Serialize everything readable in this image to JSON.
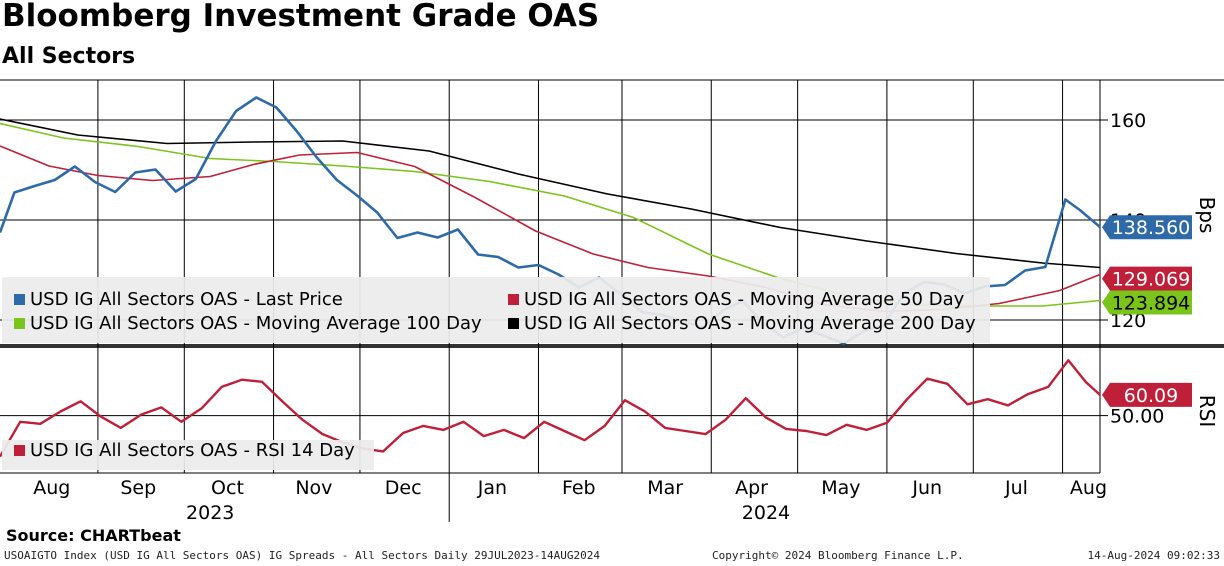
{
  "header": {
    "title": "Bloomberg Investment Grade OAS",
    "subtitle": "All Sectors"
  },
  "footer": {
    "source": "Source:  CHARTbeat",
    "description": "USOAIGTO Index (USD IG All Sectors OAS) IG Spreads - All Sectors  Daily 29JUL2023-14AUG2024",
    "copyright": "Copyright© 2024 Bloomberg Finance L.P.",
    "timestamp": "14-Aug-2024 09:02:33"
  },
  "colors": {
    "last_price": "#2e6aa8",
    "ma50": "#c01f3a",
    "ma100": "#7ac41c",
    "ma200": "#000000",
    "rsi": "#c01f3a",
    "gridline": "#000000",
    "legend_bg": "#ececec"
  },
  "chart_data": [
    {
      "type": "line",
      "title": "Bloomberg Investment Grade OAS",
      "subtitle": "All Sectors",
      "ylabel": "Bps",
      "y_ticks": [
        120,
        140,
        160
      ],
      "y_tick_labels": [
        "120",
        "140",
        "160"
      ],
      "ylim": [
        116,
        168
      ],
      "x_range": [
        "2023-07-29",
        "2024-08-14"
      ],
      "x_month_labels": [
        "Aug",
        "Sep",
        "Oct",
        "Nov",
        "Dec",
        "Jan",
        "Feb",
        "Mar",
        "Apr",
        "May",
        "Jun",
        "Jul",
        "Aug"
      ],
      "x_year_labels": [
        "2023",
        "2024"
      ],
      "grid": true,
      "legend_position": "bottom-left",
      "series": [
        {
          "name": "USD IG All Sectors OAS - Last Price",
          "color_key": "last_price",
          "last_value": "138.560",
          "points": [
            [
              "2023-07-29",
              137.5
            ],
            [
              "2023-08-03",
              145.5
            ],
            [
              "2023-08-10",
              146.8
            ],
            [
              "2023-08-17",
              148.0
            ],
            [
              "2023-08-24",
              150.7
            ],
            [
              "2023-08-31",
              147.6
            ],
            [
              "2023-09-07",
              145.6
            ],
            [
              "2023-09-14",
              149.5
            ],
            [
              "2023-09-21",
              150.1
            ],
            [
              "2023-09-28",
              145.7
            ],
            [
              "2023-10-05",
              148.2
            ],
            [
              "2023-10-12",
              155.8
            ],
            [
              "2023-10-19",
              161.8
            ],
            [
              "2023-10-26",
              164.5
            ],
            [
              "2023-11-02",
              162.5
            ],
            [
              "2023-11-09",
              157.8
            ],
            [
              "2023-11-16",
              152.5
            ],
            [
              "2023-11-23",
              148.0
            ],
            [
              "2023-11-30",
              144.9
            ],
            [
              "2023-12-07",
              141.5
            ],
            [
              "2023-12-14",
              136.4
            ],
            [
              "2023-12-21",
              137.5
            ],
            [
              "2023-12-28",
              136.5
            ],
            [
              "2024-01-04",
              138.1
            ],
            [
              "2024-01-11",
              133.1
            ],
            [
              "2024-01-18",
              132.6
            ],
            [
              "2024-01-25",
              130.5
            ],
            [
              "2024-02-01",
              131.0
            ],
            [
              "2024-02-08",
              129.1
            ],
            [
              "2024-02-15",
              126.5
            ],
            [
              "2024-02-22",
              128.5
            ],
            [
              "2024-03-01",
              125.0
            ],
            [
              "2024-03-08",
              121.6
            ],
            [
              "2024-03-15",
              121.0
            ],
            [
              "2024-03-22",
              119.8
            ],
            [
              "2024-03-29",
              118.5
            ],
            [
              "2024-04-05",
              121.9
            ],
            [
              "2024-04-12",
              123.8
            ],
            [
              "2024-04-19",
              119.4
            ],
            [
              "2024-04-26",
              116.5
            ],
            [
              "2024-05-03",
              118.4
            ],
            [
              "2024-05-10",
              116.9
            ],
            [
              "2024-05-17",
              115.3
            ],
            [
              "2024-05-24",
              117.8
            ],
            [
              "2024-05-31",
              119.0
            ],
            [
              "2024-06-07",
              125.4
            ],
            [
              "2024-06-14",
              127.6
            ],
            [
              "2024-06-21",
              127.1
            ],
            [
              "2024-06-28",
              125.3
            ],
            [
              "2024-07-05",
              126.7
            ],
            [
              "2024-07-12",
              127.0
            ],
            [
              "2024-07-19",
              129.9
            ],
            [
              "2024-07-26",
              130.6
            ],
            [
              "2024-08-02",
              144.1
            ],
            [
              "2024-08-07",
              142.0
            ],
            [
              "2024-08-14",
              138.6
            ]
          ]
        },
        {
          "name": "USD IG All Sectors OAS - Moving Average 50 Day",
          "color_key": "ma50",
          "last_value": "129.069",
          "points": [
            [
              "2023-07-29",
              154.8
            ],
            [
              "2023-08-15",
              150.8
            ],
            [
              "2023-09-01",
              148.9
            ],
            [
              "2023-09-20",
              147.9
            ],
            [
              "2023-10-10",
              148.7
            ],
            [
              "2023-10-25",
              151.1
            ],
            [
              "2023-11-10",
              153.0
            ],
            [
              "2023-11-30",
              153.5
            ],
            [
              "2023-12-20",
              150.7
            ],
            [
              "2024-01-10",
              144.5
            ],
            [
              "2024-01-31",
              137.8
            ],
            [
              "2024-02-20",
              133.2
            ],
            [
              "2024-03-10",
              130.5
            ],
            [
              "2024-03-31",
              128.8
            ],
            [
              "2024-04-20",
              126.5
            ],
            [
              "2024-05-10",
              123.1
            ],
            [
              "2024-05-31",
              121.7
            ],
            [
              "2024-06-20",
              122.1
            ],
            [
              "2024-07-10",
              123.3
            ],
            [
              "2024-07-31",
              125.9
            ],
            [
              "2024-08-14",
              129.1
            ]
          ]
        },
        {
          "name": "USD IG All Sectors OAS - Moving Average 100 Day",
          "color_key": "ma100",
          "last_value": "123.894",
          "points": [
            [
              "2023-07-29",
              159.3
            ],
            [
              "2023-08-20",
              156.4
            ],
            [
              "2023-09-15",
              154.7
            ],
            [
              "2023-10-10",
              152.3
            ],
            [
              "2023-11-01",
              151.7
            ],
            [
              "2023-11-25",
              150.8
            ],
            [
              "2023-12-20",
              149.7
            ],
            [
              "2024-01-15",
              147.7
            ],
            [
              "2024-02-10",
              144.8
            ],
            [
              "2024-03-05",
              140.5
            ],
            [
              "2024-03-31",
              133.2
            ],
            [
              "2024-04-25",
              128.3
            ],
            [
              "2024-05-20",
              124.6
            ],
            [
              "2024-06-10",
              123.0
            ],
            [
              "2024-07-01",
              122.8
            ],
            [
              "2024-07-25",
              122.8
            ],
            [
              "2024-08-14",
              123.9
            ]
          ]
        },
        {
          "name": "USD IG All Sectors OAS - Moving Average 200 Day",
          "color_key": "ma200",
          "last_value": "",
          "points": [
            [
              "2023-07-29",
              160.2
            ],
            [
              "2023-08-25",
              157.0
            ],
            [
              "2023-09-25",
              155.3
            ],
            [
              "2023-10-25",
              155.6
            ],
            [
              "2023-11-25",
              155.8
            ],
            [
              "2023-12-25",
              153.8
            ],
            [
              "2024-01-25",
              149.2
            ],
            [
              "2024-02-25",
              145.2
            ],
            [
              "2024-03-25",
              142.2
            ],
            [
              "2024-04-25",
              138.5
            ],
            [
              "2024-05-25",
              135.8
            ],
            [
              "2024-06-25",
              133.3
            ],
            [
              "2024-07-25",
              131.4
            ],
            [
              "2024-08-14",
              130.5
            ]
          ]
        }
      ]
    },
    {
      "type": "line",
      "title": "",
      "ylabel": "RSI",
      "y_ticks": [
        50
      ],
      "y_tick_labels": [
        "50.00"
      ],
      "ylim": [
        22,
        82
      ],
      "legend_position": "bottom-left",
      "series": [
        {
          "name": "USD IG All Sectors OAS - RSI 14 Day",
          "color_key": "rsi",
          "last_value": "60.09",
          "points": [
            [
              "2023-07-29",
              30.0
            ],
            [
              "2023-08-05",
              47.0
            ],
            [
              "2023-08-12",
              46.0
            ],
            [
              "2023-08-19",
              52.0
            ],
            [
              "2023-08-26",
              57.0
            ],
            [
              "2023-09-02",
              49.5
            ],
            [
              "2023-09-09",
              44.0
            ],
            [
              "2023-09-16",
              50.5
            ],
            [
              "2023-09-23",
              54.0
            ],
            [
              "2023-09-30",
              47.0
            ],
            [
              "2023-10-07",
              53.5
            ],
            [
              "2023-10-14",
              64.0
            ],
            [
              "2023-10-21",
              67.5
            ],
            [
              "2023-10-28",
              66.5
            ],
            [
              "2023-11-04",
              57.0
            ],
            [
              "2023-11-11",
              48.0
            ],
            [
              "2023-11-18",
              41.0
            ],
            [
              "2023-11-25",
              37.0
            ],
            [
              "2023-12-02",
              34.0
            ],
            [
              "2023-12-09",
              32.5
            ],
            [
              "2023-12-16",
              41.5
            ],
            [
              "2023-12-23",
              45.0
            ],
            [
              "2023-12-30",
              43.0
            ],
            [
              "2024-01-06",
              47.0
            ],
            [
              "2024-01-13",
              40.0
            ],
            [
              "2024-01-20",
              43.0
            ],
            [
              "2024-01-27",
              39.0
            ],
            [
              "2024-02-03",
              47.0
            ],
            [
              "2024-02-10",
              42.5
            ],
            [
              "2024-02-17",
              38.0
            ],
            [
              "2024-02-24",
              45.0
            ],
            [
              "2024-03-02",
              57.5
            ],
            [
              "2024-03-09",
              52.0
            ],
            [
              "2024-03-16",
              44.0
            ],
            [
              "2024-03-23",
              42.5
            ],
            [
              "2024-03-30",
              41.0
            ],
            [
              "2024-04-06",
              48.0
            ],
            [
              "2024-04-13",
              58.5
            ],
            [
              "2024-04-20",
              49.0
            ],
            [
              "2024-04-27",
              43.5
            ],
            [
              "2024-05-04",
              42.5
            ],
            [
              "2024-05-11",
              40.5
            ],
            [
              "2024-05-18",
              45.5
            ],
            [
              "2024-05-25",
              43.0
            ],
            [
              "2024-06-01",
              46.5
            ],
            [
              "2024-06-08",
              58.0
            ],
            [
              "2024-06-15",
              68.0
            ],
            [
              "2024-06-22",
              65.5
            ],
            [
              "2024-06-29",
              55.5
            ],
            [
              "2024-07-06",
              58.0
            ],
            [
              "2024-07-13",
              55.0
            ],
            [
              "2024-07-20",
              60.5
            ],
            [
              "2024-07-27",
              64.0
            ],
            [
              "2024-08-03",
              77.0
            ],
            [
              "2024-08-09",
              66.5
            ],
            [
              "2024-08-14",
              60.1
            ]
          ]
        }
      ]
    }
  ]
}
